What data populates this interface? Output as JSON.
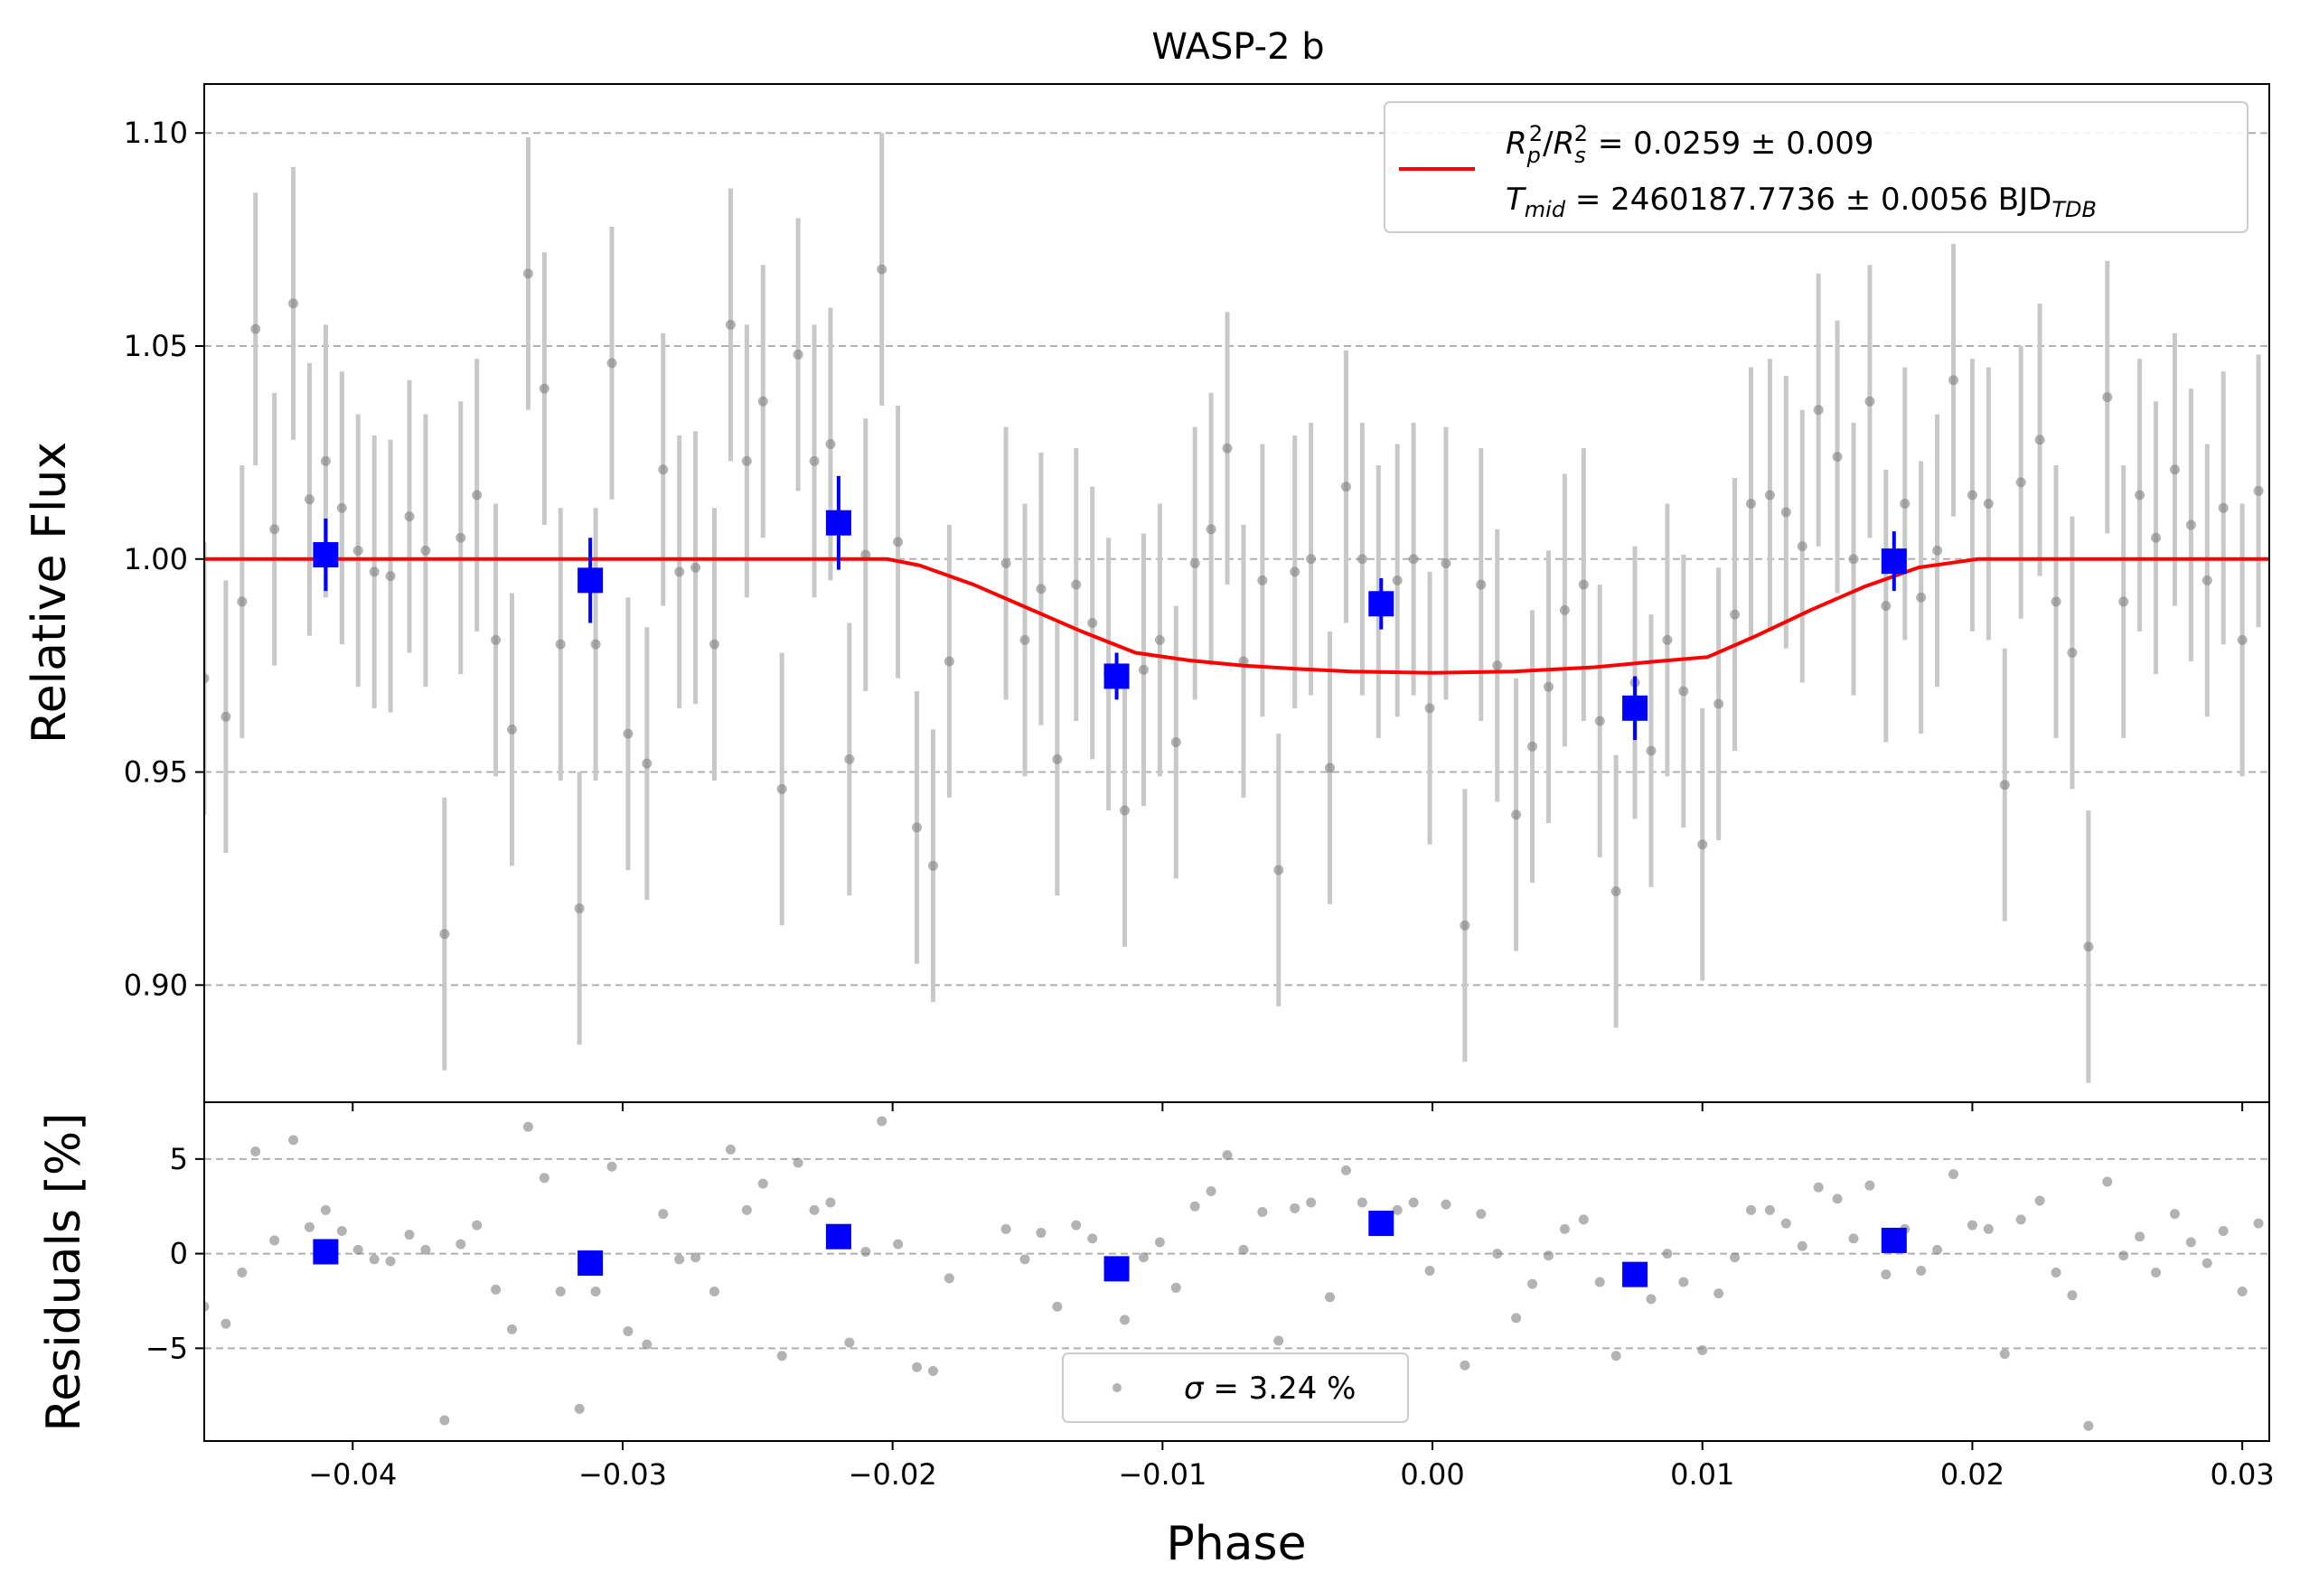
{
  "chart_data": [
    {
      "type": "scatter",
      "panel": "light-curve",
      "title": "WASP-2 b",
      "xlabel": "",
      "ylabel": "Relative Flux",
      "xlim": [
        -0.0455,
        0.031
      ],
      "ylim": [
        0.8725,
        1.1115
      ],
      "x_ticks": [
        -0.04,
        -0.03,
        -0.02,
        -0.01,
        0.0,
        0.01,
        0.02,
        0.03
      ],
      "x_tick_labels": [
        "−0.04",
        "−0.03",
        "−0.02",
        "−0.01",
        "0.00",
        "0.01",
        "0.02",
        "0.03"
      ],
      "y_ticks": [
        0.9,
        0.95,
        1.0,
        1.05,
        1.1
      ],
      "y_tick_labels": [
        "0.90",
        "0.95",
        "1.00",
        "1.05",
        "1.10"
      ],
      "grid": "horizontal dashed",
      "legend_position": "upper right",
      "legend": {
        "rp_base": "R",
        "rp_sub": "p",
        "rs_base": "R",
        "rs_sub": "s",
        "sup": "2",
        "slash": "/",
        "rp_value": " = 0.0259 ± 0.009",
        "t_base": "T",
        "t_sub": "mid",
        "t_value": " = 2460187.7736 ± 0.0056 BJD",
        "t_unit_sub": "TDB"
      },
      "colors": {
        "data": "#808080",
        "errorbar": "#c8c8c8",
        "binned": "#0000ff",
        "model": "#ff0000",
        "grid": "#b0b0b0"
      },
      "model_curve": {
        "x": [
          -0.0455,
          -0.0202,
          -0.019,
          -0.017,
          -0.015,
          -0.013,
          -0.011,
          -0.009,
          -0.007,
          -0.005,
          -0.003,
          0.0,
          0.003,
          0.006,
          0.008,
          0.0102,
          0.012,
          0.014,
          0.016,
          0.018,
          0.0202,
          0.031
        ],
        "y": [
          1.0,
          1.0,
          0.9985,
          0.994,
          0.9885,
          0.983,
          0.978,
          0.9762,
          0.975,
          0.9742,
          0.9736,
          0.9733,
          0.9736,
          0.9746,
          0.9758,
          0.977,
          0.982,
          0.988,
          0.9935,
          0.998,
          1.0,
          1.0
        ]
      },
      "binned": {
        "x": [
          -0.041,
          -0.0312,
          -0.022,
          -0.0117,
          -0.0019,
          0.0075,
          0.0171
        ],
        "y": [
          1.001,
          0.995,
          1.0085,
          0.9725,
          0.9895,
          0.965,
          0.9995
        ],
        "err": [
          0.0085,
          0.01,
          0.011,
          0.0055,
          0.006,
          0.0075,
          0.007
        ]
      },
      "points": {
        "x": [
          -0.0455,
          -0.0447,
          -0.0441,
          -0.0436,
          -0.0429,
          -0.0422,
          -0.0416,
          -0.041,
          -0.0404,
          -0.0398,
          -0.0392,
          -0.0386,
          -0.0379,
          -0.0373,
          -0.0366,
          -0.036,
          -0.0354,
          -0.0347,
          -0.0341,
          -0.0335,
          -0.0329,
          -0.0323,
          -0.0316,
          -0.031,
          -0.0304,
          -0.0298,
          -0.0291,
          -0.0285,
          -0.0279,
          -0.0273,
          -0.0266,
          -0.026,
          -0.0254,
          -0.0248,
          -0.0241,
          -0.0235,
          -0.0229,
          -0.0223,
          -0.0216,
          -0.021,
          -0.0204,
          -0.0198,
          -0.0191,
          -0.0185,
          -0.0179,
          -0.0158,
          -0.0151,
          -0.0145,
          -0.0139,
          -0.0132,
          -0.0126,
          -0.012,
          -0.0114,
          -0.0107,
          -0.0101,
          -0.0095,
          -0.0088,
          -0.0082,
          -0.0076,
          -0.007,
          -0.0063,
          -0.0057,
          -0.0051,
          -0.0045,
          -0.0038,
          -0.0032,
          -0.0026,
          -0.002,
          -0.0013,
          -0.0007,
          -0.0001,
          0.0005,
          0.0012,
          0.0018,
          0.0024,
          0.0031,
          0.0037,
          0.0043,
          0.0049,
          0.0056,
          0.0062,
          0.0068,
          0.0075,
          0.0081,
          0.0087,
          0.0093,
          0.01,
          0.0106,
          0.0112,
          0.0118,
          0.0125,
          0.0131,
          0.0137,
          0.0143,
          0.015,
          0.0156,
          0.0162,
          0.0168,
          0.0175,
          0.0181,
          0.0187,
          0.0193,
          0.02,
          0.0206,
          0.0212,
          0.0218,
          0.0225,
          0.0231,
          0.0237,
          0.0243,
          0.025,
          0.0256,
          0.0262,
          0.0268,
          0.0275,
          0.0281,
          0.0287,
          0.0293,
          0.03,
          0.0306
        ],
        "y": [
          0.972,
          0.963,
          0.99,
          1.054,
          1.007,
          1.06,
          1.014,
          1.023,
          1.012,
          1.002,
          0.997,
          0.996,
          1.01,
          1.002,
          0.912,
          1.005,
          1.015,
          0.981,
          0.96,
          1.067,
          1.04,
          0.98,
          0.918,
          0.98,
          1.046,
          0.959,
          0.952,
          1.021,
          0.997,
          0.998,
          0.98,
          1.055,
          1.023,
          1.037,
          0.946,
          1.048,
          1.023,
          1.027,
          0.953,
          1.001,
          1.068,
          1.004,
          0.937,
          0.928,
          0.976,
          0.999,
          0.981,
          0.993,
          0.953,
          0.994,
          0.985,
          0.973,
          0.941,
          0.974,
          0.981,
          0.957,
          0.999,
          1.007,
          1.026,
          0.976,
          0.995,
          0.927,
          0.997,
          1.0,
          0.951,
          1.017,
          1.0,
          0.99,
          0.995,
          1.0,
          0.965,
          0.999,
          0.914,
          0.994,
          0.975,
          0.94,
          0.956,
          0.97,
          0.988,
          0.994,
          0.962,
          0.922,
          0.971,
          0.955,
          0.981,
          0.969,
          0.933,
          0.966,
          0.987,
          1.013,
          1.015,
          1.011,
          1.003,
          1.035,
          1.024,
          1.0,
          1.037,
          0.989,
          1.013,
          0.991,
          1.002,
          1.042,
          1.015,
          1.013,
          0.947,
          1.018,
          1.028,
          0.99,
          0.978,
          0.909,
          1.038,
          0.99,
          1.015,
          1.005,
          1.021,
          1.008,
          0.995,
          1.012,
          0.981,
          1.016
        ],
        "err": 0.032
      }
    },
    {
      "type": "scatter",
      "panel": "residuals",
      "xlabel": "Phase",
      "ylabel": "Residuals [%]",
      "xlim": [
        -0.0455,
        0.031
      ],
      "ylim": [
        -9.9,
        8.0
      ],
      "y_ticks": [
        -5,
        0,
        5
      ],
      "y_tick_labels": [
        "−5",
        "0",
        "5"
      ],
      "grid": "horizontal dashed",
      "legend_position": "lower center",
      "legend": {
        "sigma": "σ",
        "label": " = 3.24 %"
      },
      "binned": {
        "x": [
          -0.041,
          -0.0312,
          -0.022,
          -0.0117,
          -0.0019,
          0.0075,
          0.0171
        ],
        "y": [
          0.1,
          -0.5,
          0.9,
          -0.8,
          1.6,
          -1.1,
          0.7
        ]
      },
      "points": {
        "x": [
          -0.0455,
          -0.0447,
          -0.0441,
          -0.0436,
          -0.0429,
          -0.0422,
          -0.0416,
          -0.041,
          -0.0404,
          -0.0398,
          -0.0392,
          -0.0386,
          -0.0379,
          -0.0373,
          -0.0366,
          -0.036,
          -0.0354,
          -0.0347,
          -0.0341,
          -0.0335,
          -0.0329,
          -0.0323,
          -0.0316,
          -0.031,
          -0.0304,
          -0.0298,
          -0.0291,
          -0.0285,
          -0.0279,
          -0.0273,
          -0.0266,
          -0.026,
          -0.0254,
          -0.0248,
          -0.0241,
          -0.0235,
          -0.0229,
          -0.0223,
          -0.0216,
          -0.021,
          -0.0204,
          -0.0198,
          -0.0191,
          -0.0185,
          -0.0179,
          -0.0158,
          -0.0151,
          -0.0145,
          -0.0139,
          -0.0132,
          -0.0126,
          -0.012,
          -0.0114,
          -0.0107,
          -0.0101,
          -0.0095,
          -0.0088,
          -0.0082,
          -0.0076,
          -0.007,
          -0.0063,
          -0.0057,
          -0.0051,
          -0.0045,
          -0.0038,
          -0.0032,
          -0.0026,
          -0.002,
          -0.0013,
          -0.0007,
          -0.0001,
          0.0005,
          0.0012,
          0.0018,
          0.0024,
          0.0031,
          0.0037,
          0.0043,
          0.0049,
          0.0056,
          0.0062,
          0.0068,
          0.0075,
          0.0081,
          0.0087,
          0.0093,
          0.01,
          0.0106,
          0.0112,
          0.0118,
          0.0125,
          0.0131,
          0.0137,
          0.0143,
          0.015,
          0.0156,
          0.0162,
          0.0168,
          0.0175,
          0.0181,
          0.0187,
          0.0193,
          0.02,
          0.0206,
          0.0212,
          0.0218,
          0.0225,
          0.0231,
          0.0237,
          0.0243,
          0.025,
          0.0256,
          0.0262,
          0.0268,
          0.0275,
          0.0281,
          0.0287,
          0.0293,
          0.03,
          0.0306
        ],
        "y": [
          -2.8,
          -3.7,
          -1.0,
          5.4,
          0.7,
          6.0,
          1.4,
          2.3,
          1.2,
          0.2,
          -0.3,
          -0.4,
          1.0,
          0.2,
          -8.8,
          0.5,
          1.5,
          -1.9,
          -4.0,
          6.7,
          4.0,
          -2.0,
          -8.2,
          -2.0,
          4.6,
          -4.1,
          -4.8,
          2.1,
          -0.3,
          -0.2,
          -2.0,
          5.5,
          2.3,
          3.7,
          -5.4,
          4.8,
          2.3,
          2.7,
          -4.7,
          0.1,
          7.0,
          0.5,
          -6.0,
          -6.2,
          -1.3,
          1.3,
          -0.3,
          1.1,
          -2.8,
          1.5,
          0.8,
          -0.5,
          -3.5,
          -0.2,
          0.6,
          -1.8,
          2.5,
          3.3,
          5.2,
          0.2,
          2.2,
          -4.6,
          2.4,
          2.7,
          -2.3,
          4.4,
          2.7,
          1.7,
          2.3,
          2.7,
          -0.9,
          2.6,
          -5.9,
          2.1,
          0.0,
          -3.4,
          -1.6,
          -0.1,
          1.3,
          1.8,
          -1.5,
          -5.4,
          -0.8,
          -2.4,
          0.0,
          -1.5,
          -5.1,
          -2.1,
          -0.2,
          2.3,
          2.3,
          1.6,
          0.4,
          3.5,
          2.9,
          0.8,
          3.6,
          -1.1,
          1.3,
          -0.9,
          0.2,
          4.2,
          1.5,
          1.3,
          -5.3,
          1.8,
          2.8,
          -1.0,
          -2.2,
          -9.1,
          3.8,
          -0.1,
          0.9,
          -1.0,
          2.1,
          0.6,
          -0.5,
          1.2,
          -2.0,
          1.6
        ]
      }
    }
  ]
}
